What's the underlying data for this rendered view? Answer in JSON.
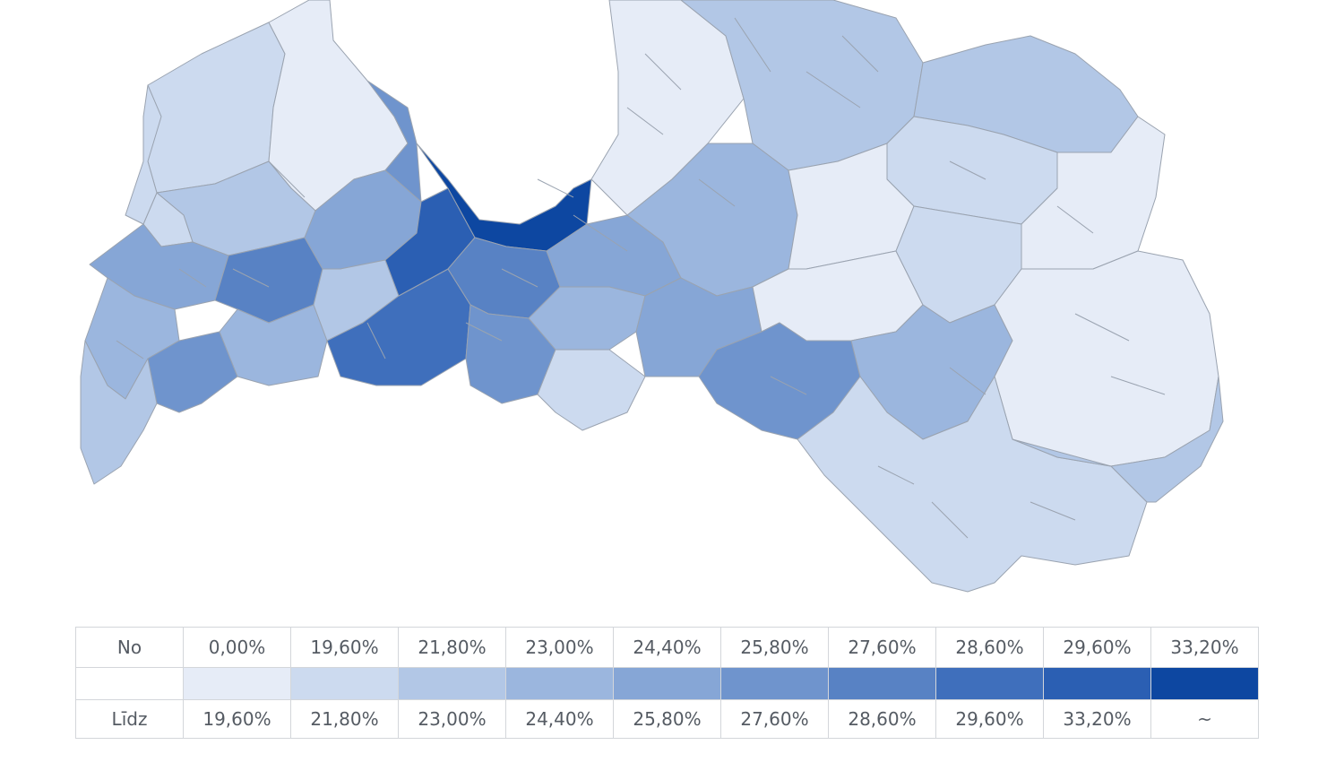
{
  "legend": {
    "from_label": "No",
    "to_label": "Līdz",
    "classes": [
      {
        "from": "0,00%",
        "to": "19,60%",
        "color": "#e6ecf7"
      },
      {
        "from": "19,60%",
        "to": "21,80%",
        "color": "#ccdaef"
      },
      {
        "from": "21,80%",
        "to": "23,00%",
        "color": "#b2c7e6"
      },
      {
        "from": "23,00%",
        "to": "24,40%",
        "color": "#9bb6de"
      },
      {
        "from": "24,40%",
        "to": "25,80%",
        "color": "#86a6d6"
      },
      {
        "from": "25,80%",
        "to": "27,60%",
        "color": "#6f94cd"
      },
      {
        "from": "27,60%",
        "to": "28,60%",
        "color": "#5882c4"
      },
      {
        "from": "28,60%",
        "to": "29,60%",
        "color": "#3f6fbc"
      },
      {
        "from": "29,60%",
        "to": "33,20%",
        "color": "#2b5fb3"
      },
      {
        "from": "33,20%",
        "to": "~",
        "color": "#0d47a1"
      }
    ]
  },
  "map": {
    "region_classes": [
      1,
      0,
      2,
      1,
      4,
      3,
      2,
      5,
      6,
      3,
      4,
      2,
      5,
      7,
      8,
      9,
      6,
      5,
      4,
      3,
      1,
      0,
      2,
      3,
      4,
      2,
      1,
      0,
      0,
      1,
      5,
      3,
      0,
      0,
      1,
      2
    ]
  }
}
